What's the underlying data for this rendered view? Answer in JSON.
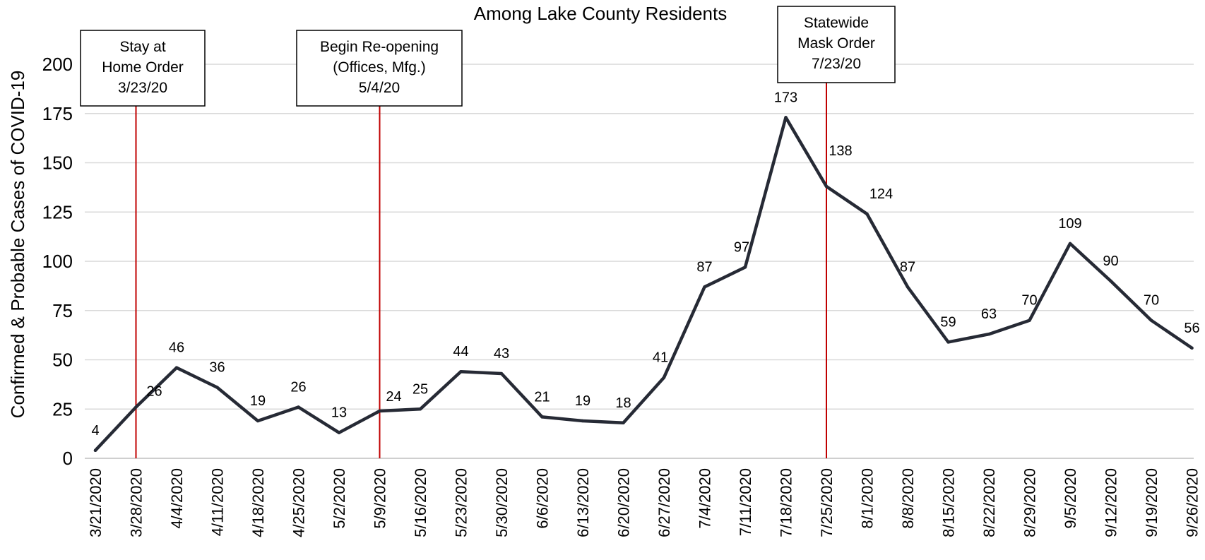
{
  "chart_data": {
    "type": "line",
    "title": "Among Lake County Residents",
    "ylabel": "Confirmed & Probable Cases of COVID-19",
    "xlabel": "",
    "ylim": [
      0,
      200
    ],
    "yticks": [
      0,
      25,
      50,
      75,
      100,
      125,
      150,
      175,
      200
    ],
    "grid": true,
    "categories": [
      "3/21/2020",
      "3/28/2020",
      "4/4/2020",
      "4/11/2020",
      "4/18/2020",
      "4/25/2020",
      "5/2/2020",
      "5/9/2020",
      "5/16/2020",
      "5/23/2020",
      "5/30/2020",
      "6/6/2020",
      "6/13/2020",
      "6/20/2020",
      "6/27/2020",
      "7/4/2020",
      "7/11/2020",
      "7/18/2020",
      "7/25/2020",
      "8/1/2020",
      "8/8/2020",
      "8/15/2020",
      "8/22/2020",
      "8/29/2020",
      "9/5/2020",
      "9/12/2020",
      "9/19/2020",
      "9/26/2020"
    ],
    "values": [
      4,
      26,
      46,
      36,
      19,
      26,
      13,
      24,
      25,
      44,
      43,
      21,
      19,
      18,
      41,
      87,
      97,
      173,
      138,
      124,
      87,
      59,
      63,
      70,
      109,
      90,
      70,
      56
    ],
    "line_color": "#262a35",
    "annotations": [
      {
        "category": "3/28/2020",
        "lines": [
          "Stay at",
          "Home Order",
          "3/23/20"
        ],
        "color": "#c00000"
      },
      {
        "category": "5/9/2020",
        "lines": [
          "Begin Re-opening",
          "(Offices, Mfg.)",
          "5/4/20"
        ],
        "color": "#c00000"
      },
      {
        "category": "7/25/2020",
        "lines": [
          "Statewide",
          "Mask Order",
          "7/23/20"
        ],
        "color": "#c00000"
      }
    ]
  }
}
